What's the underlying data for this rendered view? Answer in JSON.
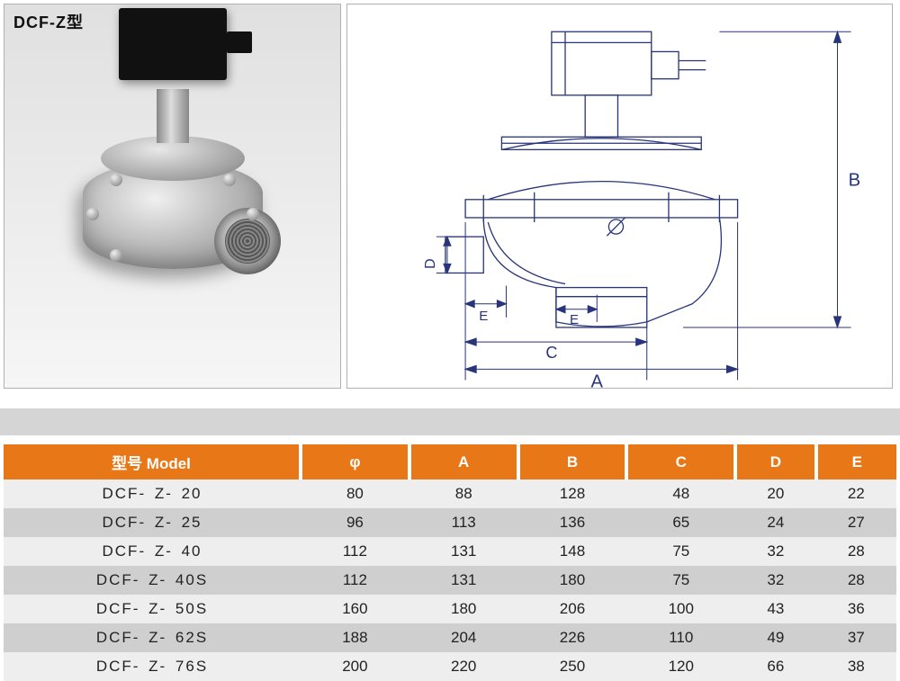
{
  "header": {
    "product_title": "DCF-Z型"
  },
  "diagram": {
    "dimension_labels": {
      "A": "A",
      "B": "B",
      "C": "C",
      "D": "D",
      "E": "E",
      "E2": "E"
    },
    "line_color": "#28357a",
    "line_width": 1.2
  },
  "table": {
    "header_bg": "#e87817",
    "header_fg": "#ffffff",
    "row_band_a": "#eeeeee",
    "row_band_b": "#cfcfcf",
    "columns": [
      "型号  Model",
      "φ",
      "A",
      "B",
      "C",
      "D",
      "E"
    ],
    "rows": [
      {
        "model": "DCF- Z- 20",
        "phi": "80",
        "A": "88",
        "B": "128",
        "C": "48",
        "D": "20",
        "E": "22"
      },
      {
        "model": "DCF- Z- 25",
        "phi": "96",
        "A": "113",
        "B": "136",
        "C": "65",
        "D": "24",
        "E": "27"
      },
      {
        "model": "DCF- Z- 40",
        "phi": "112",
        "A": "131",
        "B": "148",
        "C": "75",
        "D": "32",
        "E": "28"
      },
      {
        "model": "DCF- Z- 40S",
        "phi": "112",
        "A": "131",
        "B": "180",
        "C": "75",
        "D": "32",
        "E": "28"
      },
      {
        "model": "DCF- Z- 50S",
        "phi": "160",
        "A": "180",
        "B": "206",
        "C": "100",
        "D": "43",
        "E": "36"
      },
      {
        "model": "DCF- Z- 62S",
        "phi": "188",
        "A": "204",
        "B": "226",
        "C": "110",
        "D": "49",
        "E": "37"
      },
      {
        "model": "DCF- Z- 76S",
        "phi": "200",
        "A": "220",
        "B": "250",
        "C": "120",
        "D": "66",
        "E": "38"
      }
    ]
  }
}
